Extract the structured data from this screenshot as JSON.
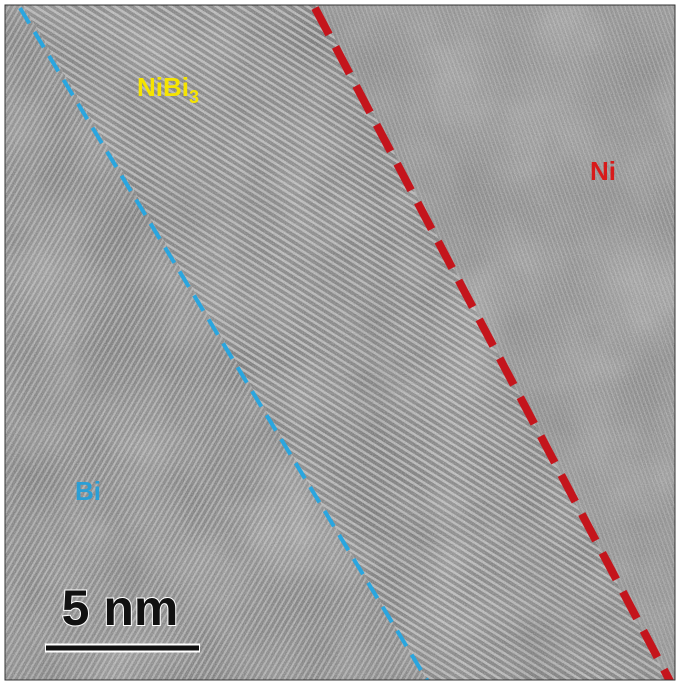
{
  "labels": {
    "nibi3": {
      "base": "NiBi",
      "subscript": "3"
    },
    "ni": "Ni",
    "bi": "Bi"
  },
  "scale_bar": {
    "label": "5 nm"
  }
}
